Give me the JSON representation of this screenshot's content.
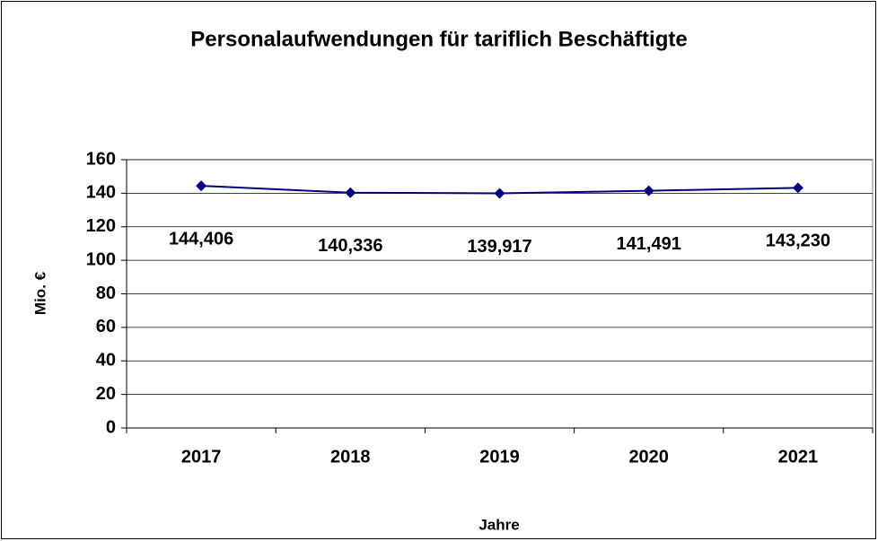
{
  "chart_data": {
    "type": "line",
    "title": "Personalaufwendungen für tariflich Beschäftigte",
    "x_label": "Jahre",
    "y_label": "Mio. €",
    "categories": [
      "2017",
      "2018",
      "2019",
      "2020",
      "2021"
    ],
    "series": [
      {
        "name": "Personalaufwendungen",
        "color": "#000080",
        "values": [
          144.406,
          140.336,
          139.917,
          141.491,
          143.23
        ],
        "value_labels": [
          "144,406",
          "140,336",
          "139,917",
          "141,491",
          "143,230"
        ]
      }
    ],
    "ylim": [
      0,
      160
    ],
    "yticks": [
      0,
      20,
      40,
      60,
      80,
      100,
      120,
      140,
      160
    ],
    "grid": true
  }
}
